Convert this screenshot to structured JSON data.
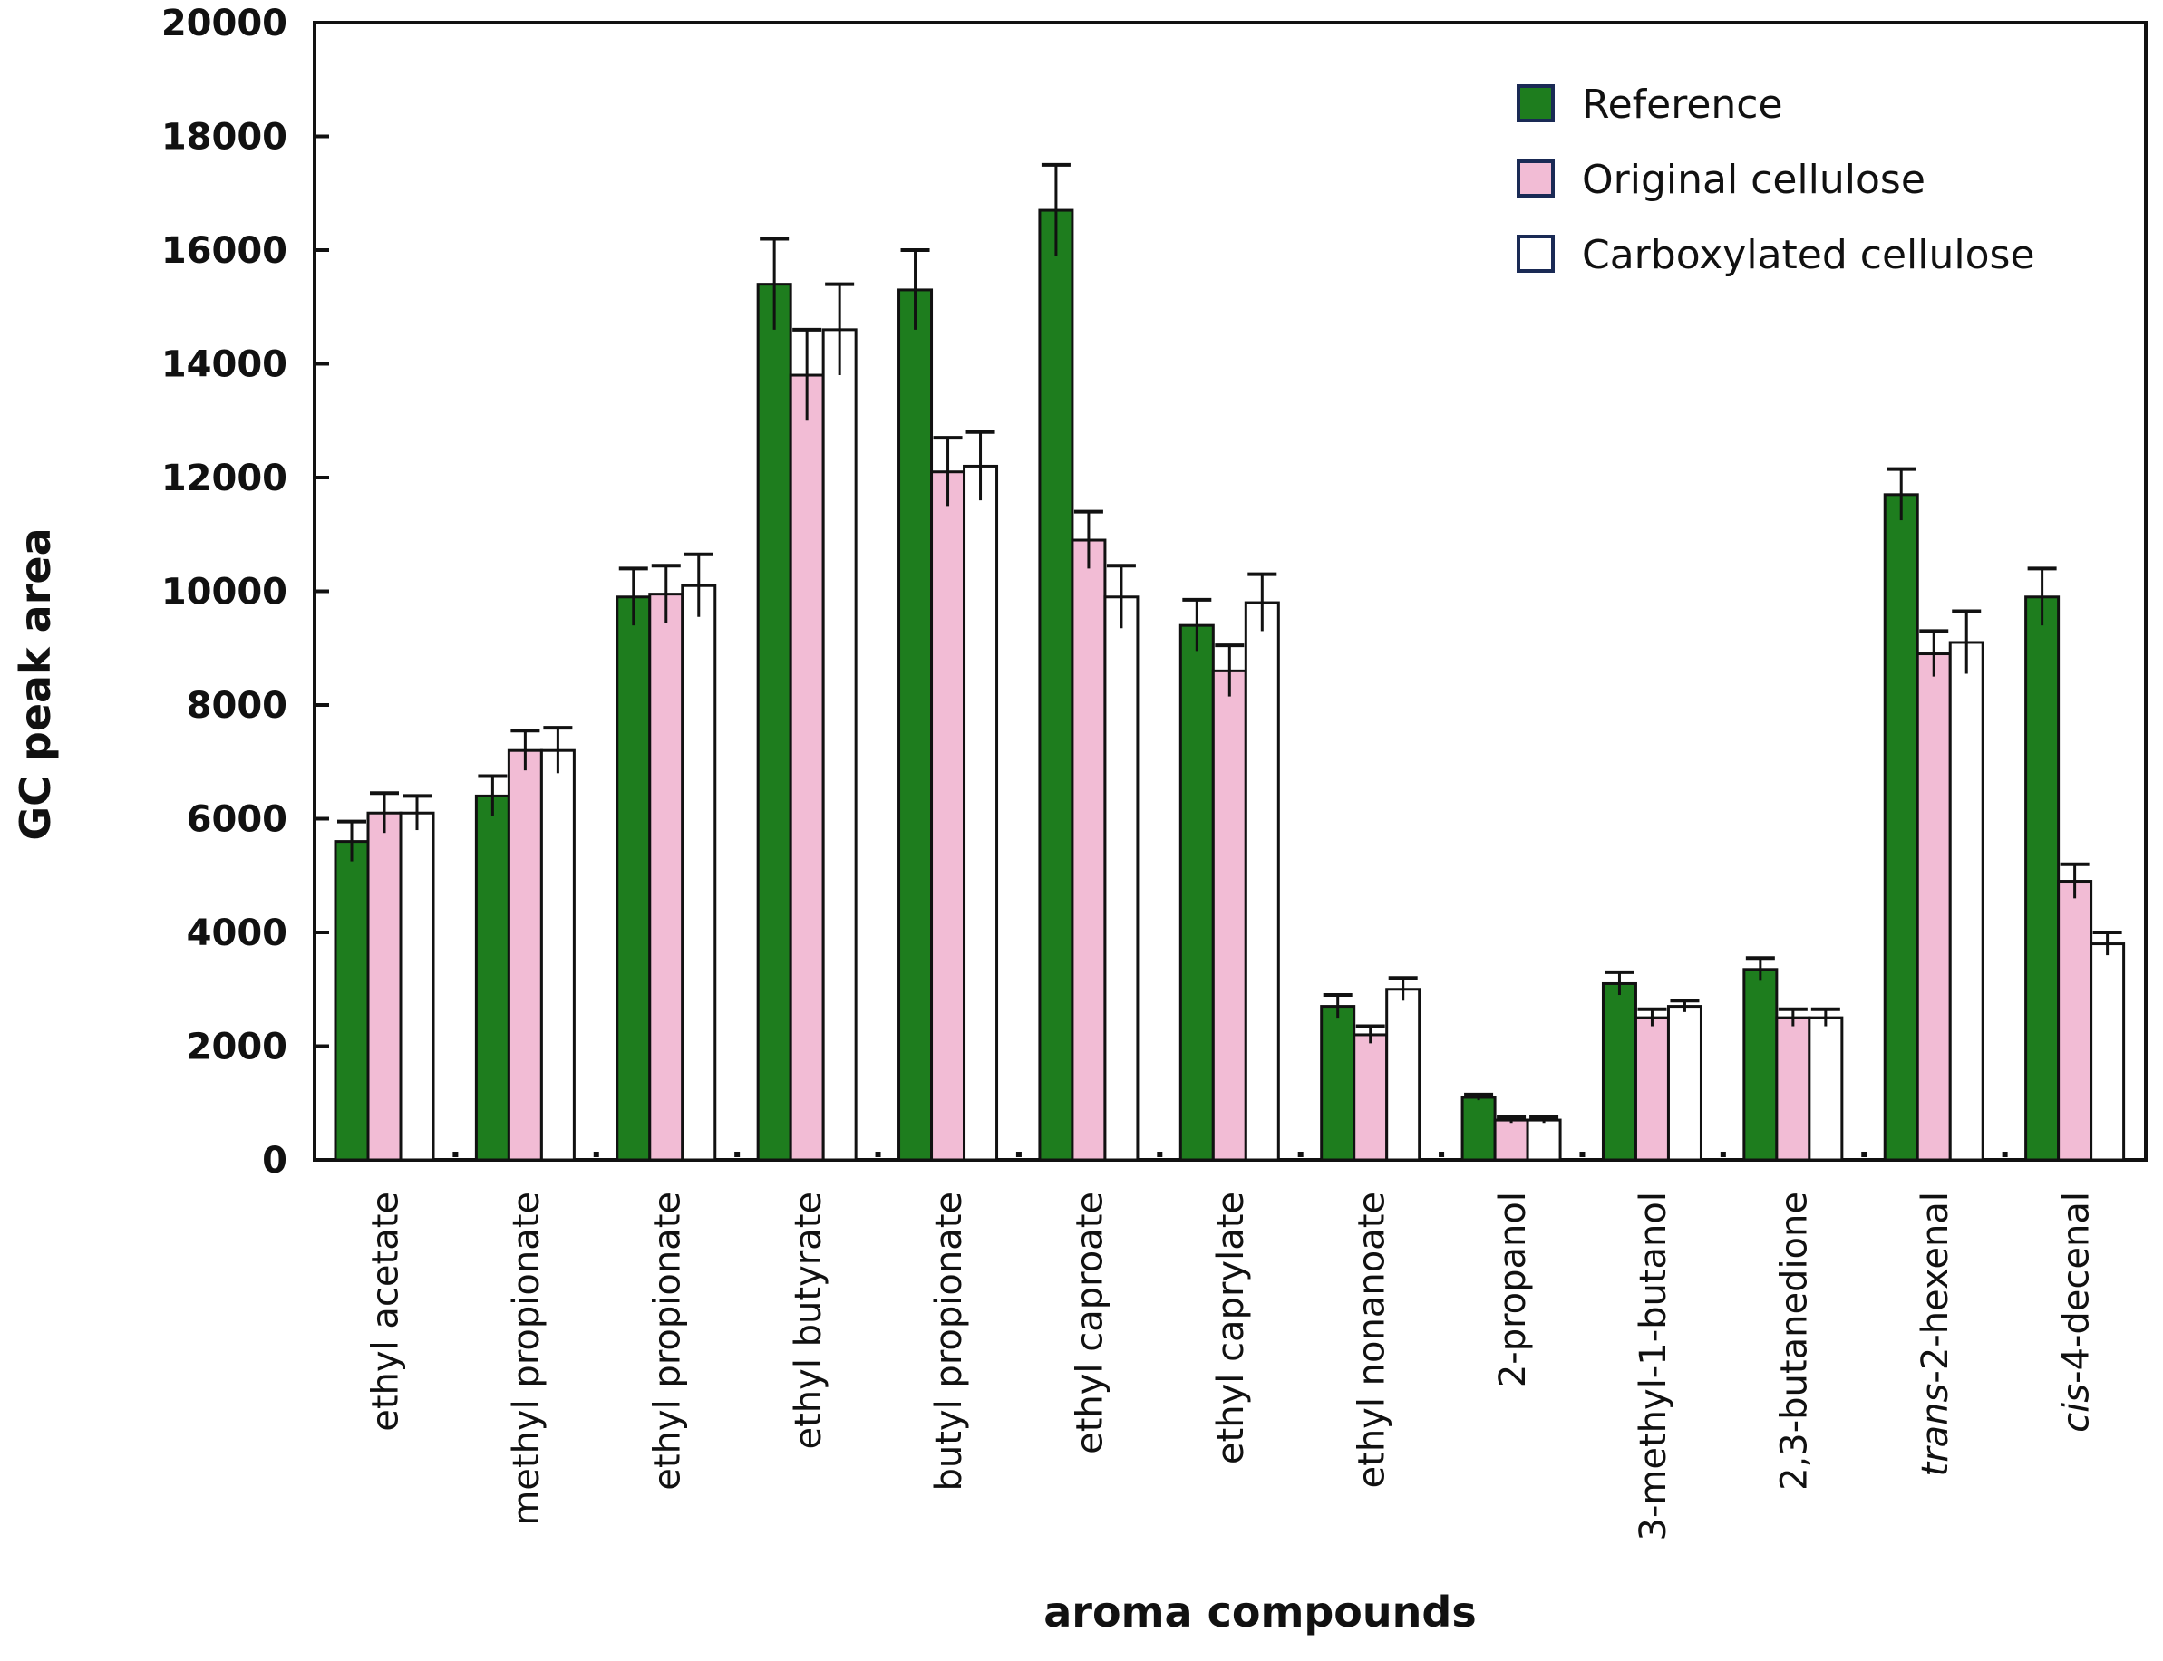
{
  "chart_data": {
    "type": "bar",
    "title": "",
    "xlabel": "aroma compounds",
    "ylabel": "GC peak area",
    "ylim": [
      0,
      20000
    ],
    "yticks": [
      0,
      2000,
      4000,
      6000,
      8000,
      10000,
      12000,
      14000,
      16000,
      18000,
      20000
    ],
    "grid": false,
    "legend_position": "top-right",
    "categories": [
      "ethyl acetate",
      "methyl propionate",
      "ethyl propionate",
      "ethyl butyrate",
      "butyl propionate",
      "ethyl caproate",
      "ethyl caprylate",
      "ethyl nonanoate",
      "2-propanol",
      "3-methyl-1-butanol",
      "2,3-butanedione",
      "trans-2-hexenal",
      "cis-4-decenal"
    ],
    "italic_prefix": [
      "",
      "",
      "",
      "",
      "",
      "",
      "",
      "",
      "",
      "",
      "",
      "trans",
      "cis"
    ],
    "series": [
      {
        "name": "Reference",
        "color": "#1e7d1e",
        "values": [
          5600,
          6400,
          9900,
          15400,
          15300,
          16700,
          9400,
          2700,
          1100,
          3100,
          3350,
          11700,
          9900
        ],
        "errors": [
          350,
          350,
          500,
          800,
          700,
          800,
          450,
          200,
          50,
          200,
          200,
          450,
          500
        ]
      },
      {
        "name": "Original cellulose",
        "color": "#f2bcd5",
        "values": [
          6100,
          7200,
          9950,
          13800,
          12100,
          10900,
          8600,
          2200,
          700,
          2500,
          2500,
          8900,
          4900
        ],
        "errors": [
          350,
          350,
          500,
          800,
          600,
          500,
          450,
          150,
          50,
          150,
          150,
          400,
          300
        ]
      },
      {
        "name": "Carboxylated cellulose",
        "color": "#ffffff",
        "values": [
          6100,
          7200,
          10100,
          14600,
          12200,
          9900,
          9800,
          3000,
          700,
          2700,
          2500,
          9100,
          3800
        ],
        "errors": [
          300,
          400,
          550,
          800,
          600,
          550,
          500,
          200,
          50,
          100,
          150,
          550,
          200
        ]
      }
    ]
  }
}
